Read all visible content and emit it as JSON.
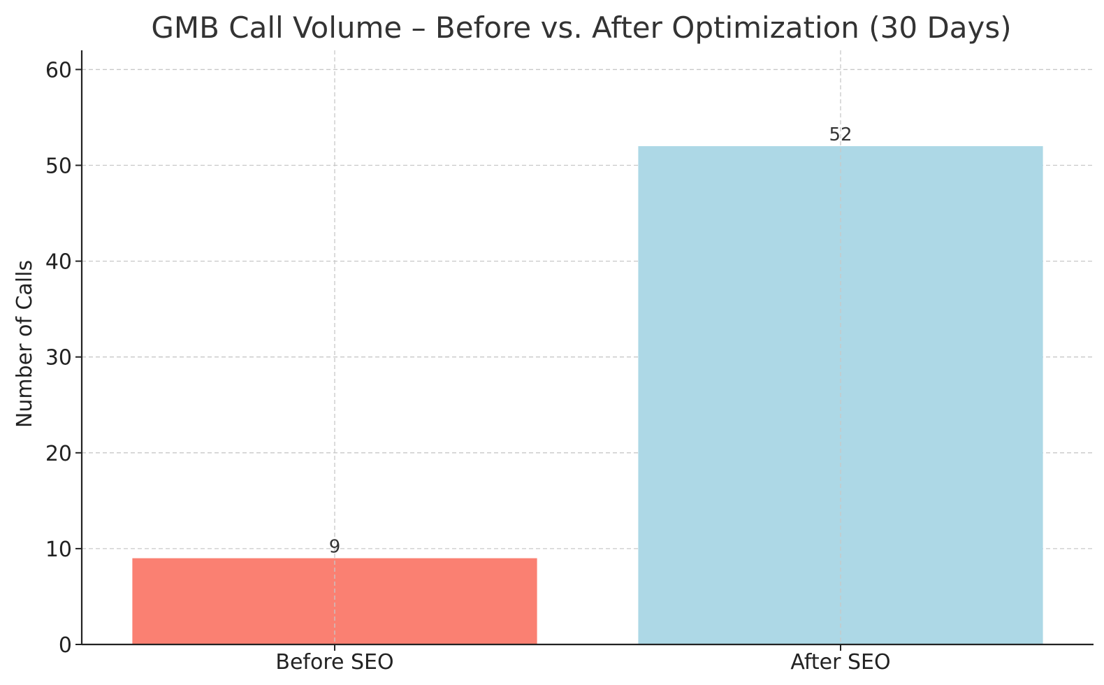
{
  "chart_data": {
    "type": "bar",
    "title": "GMB Call Volume – Before vs. After Optimization (30 Days)",
    "xlabel": "",
    "ylabel": "Number of Calls",
    "categories": [
      "Before SEO",
      "After SEO"
    ],
    "values": [
      9,
      52
    ],
    "bar_colors": [
      "#fa8072",
      "#add8e6"
    ],
    "data_labels": [
      "9",
      "52"
    ],
    "ylim": [
      0,
      62
    ],
    "yticks": [
      0,
      10,
      20,
      30,
      40,
      50,
      60
    ],
    "grid": true,
    "legend": "none"
  }
}
